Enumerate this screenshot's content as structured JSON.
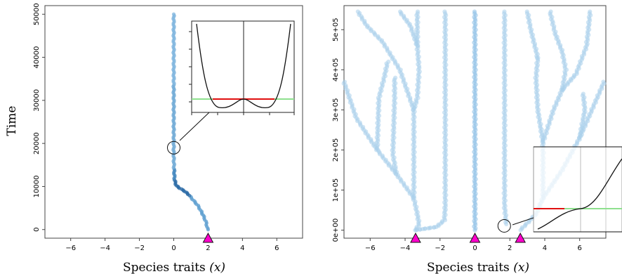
{
  "chart_data": [
    {
      "type": "scatter",
      "panel": "left",
      "xlabel_main": "Species traits",
      "xlabel_var": "(x)",
      "ylabel": "Time",
      "xlim": [
        -7.5,
        7.5
      ],
      "ylim": [
        -2000,
        52000
      ],
      "xticks": [
        -6,
        -4,
        -2,
        0,
        2,
        4,
        6
      ],
      "xtick_labels": [
        "−6",
        "−4",
        "−2",
        "0",
        "2",
        "4",
        "6"
      ],
      "yticks": [
        0,
        10000,
        20000,
        30000,
        40000,
        50000
      ],
      "ytick_labels": [
        "0",
        "10000",
        "20000",
        "30000",
        "40000",
        "50000"
      ],
      "trajectory": [
        {
          "x": 2.0,
          "y": 0
        },
        {
          "x": 1.95,
          "y": 300
        },
        {
          "x": 1.9,
          "y": 1500
        },
        {
          "x": 1.75,
          "y": 3000
        },
        {
          "x": 1.6,
          "y": 4200
        },
        {
          "x": 1.4,
          "y": 5600
        },
        {
          "x": 1.1,
          "y": 7000
        },
        {
          "x": 0.85,
          "y": 8200
        },
        {
          "x": 0.6,
          "y": 9000
        },
        {
          "x": 0.35,
          "y": 9600
        },
        {
          "x": 0.15,
          "y": 10200
        },
        {
          "x": 0.05,
          "y": 11500
        },
        {
          "x": 0.02,
          "y": 14000
        },
        {
          "x": 0.0,
          "y": 17000
        },
        {
          "x": 0.0,
          "y": 20000
        },
        {
          "x": 0.0,
          "y": 25000
        },
        {
          "x": 0.0,
          "y": 30000
        },
        {
          "x": 0.0,
          "y": 40000
        },
        {
          "x": 0.0,
          "y": 50000
        }
      ],
      "start_marker": {
        "x": 2.0,
        "color": "#ff00cc"
      },
      "highlight_circle": {
        "x": 0.0,
        "y": 19000
      },
      "inset": "double-well fitness landscape with red plateau at center and green baseline"
    },
    {
      "type": "scatter",
      "panel": "right",
      "xlabel_main": "Species traits",
      "xlabel_var": "(x)",
      "xlim": [
        -7.5,
        7.5
      ],
      "ylim": [
        -20000,
        560000
      ],
      "xticks": [
        -6,
        -4,
        -2,
        0,
        2,
        4,
        6
      ],
      "xtick_labels": [
        "−6",
        "−4",
        "−2",
        "0",
        "2",
        "4",
        "6"
      ],
      "yticks": [
        0,
        100000,
        200000,
        300000,
        400000,
        500000
      ],
      "ytick_labels": [
        "0e+00",
        "1e+05",
        "2e+05",
        "3e+05",
        "4e+05",
        "5e+05"
      ],
      "lineages": [
        {
          "points": [
            [
              0,
              0
            ],
            [
              0,
              545000
            ]
          ]
        },
        {
          "points": [
            [
              -3.4,
              0
            ],
            [
              -2.2,
              8000
            ],
            [
              -1.75,
              25000
            ],
            [
              -1.7,
              60000
            ],
            [
              -1.7,
              545000
            ]
          ]
        },
        {
          "points": [
            [
              -3.4,
              0
            ],
            [
              -3.2,
              15000
            ],
            [
              -3.3,
              40000
            ],
            [
              -3.5,
              80000
            ],
            [
              -3.5,
              300000
            ],
            [
              -3.3,
              330000
            ],
            [
              -3.2,
              400000
            ],
            [
              -3.3,
              460000
            ],
            [
              -3.3,
              545000
            ]
          ]
        },
        {
          "points": [
            [
              -3.5,
              80000
            ],
            [
              -4.5,
              140000
            ],
            [
              -5.6,
              200000
            ],
            [
              -6.8,
              280000
            ],
            [
              -7.5,
              370000
            ]
          ]
        },
        {
          "points": [
            [
              -5.6,
              200000
            ],
            [
              -5.5,
              330000
            ],
            [
              -5.2,
              380000
            ],
            [
              -5.0,
              420000
            ]
          ]
        },
        {
          "points": [
            [
              -3.5,
              300000
            ],
            [
              -4.3,
              400000
            ],
            [
              -5.3,
              470000
            ],
            [
              -6.2,
              510000
            ],
            [
              -6.7,
              545000
            ]
          ]
        },
        {
          "points": [
            [
              -3.3,
              460000
            ],
            [
              -3.7,
              510000
            ],
            [
              -4.3,
              545000
            ]
          ]
        },
        {
          "points": [
            [
              -4.5,
              140000
            ],
            [
              -4.7,
              190000
            ],
            [
              -4.6,
              330000
            ],
            [
              -4.6,
              380000
            ]
          ]
        },
        {
          "points": [
            [
              1.8,
              15000
            ],
            [
              1.7,
              60000
            ],
            [
              1.7,
              545000
            ]
          ]
        },
        {
          "points": [
            [
              2.6,
              0
            ],
            [
              3.5,
              40000
            ],
            [
              3.9,
              80000
            ],
            [
              3.9,
              220000
            ],
            [
              4.5,
              300000
            ],
            [
              5.0,
              350000
            ]
          ]
        },
        {
          "points": [
            [
              3.9,
              220000
            ],
            [
              3.6,
              300000
            ],
            [
              3.5,
              380000
            ],
            [
              3.6,
              430000
            ]
          ]
        },
        {
          "points": [
            [
              5.0,
              350000
            ],
            [
              5.2,
              400000
            ],
            [
              5.0,
              445000
            ],
            [
              4.6,
              490000
            ],
            [
              4.3,
              545000
            ]
          ]
        },
        {
          "points": [
            [
              5.0,
              350000
            ],
            [
              5.8,
              390000
            ],
            [
              6.4,
              460000
            ],
            [
              6.6,
              545000
            ]
          ]
        },
        {
          "points": [
            [
              3.9,
              80000
            ],
            [
              5.0,
              150000
            ],
            [
              6.0,
              230000
            ],
            [
              6.8,
              310000
            ],
            [
              7.4,
              370000
            ]
          ]
        },
        {
          "points": [
            [
              6.0,
              230000
            ],
            [
              6.3,
              300000
            ],
            [
              6.2,
              340000
            ]
          ]
        },
        {
          "points": [
            [
              3.6,
              430000
            ],
            [
              3.2,
              500000
            ],
            [
              3.0,
              545000
            ]
          ]
        }
      ],
      "start_markers": [
        {
          "x": -3.4,
          "color": "#ff00cc"
        },
        {
          "x": 0.0,
          "color": "#ff00cc"
        },
        {
          "x": 2.6,
          "color": "#ff00cc"
        }
      ],
      "highlight_circle": {
        "x": 1.8,
        "y": 9000
      },
      "inset": "fitness landscape zoomed near a branch, red segment and green baseline"
    }
  ]
}
